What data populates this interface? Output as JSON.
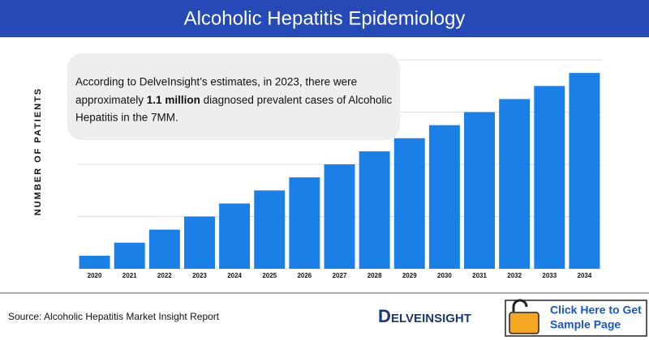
{
  "chart_data": {
    "type": "bar",
    "title": "Alcoholic Hepatitis Epidemiology",
    "ylabel": "NUMBER OF PATIENTS",
    "categories": [
      "2020",
      "2021",
      "2022",
      "2023",
      "2024",
      "2025",
      "2026",
      "2027",
      "2028",
      "2029",
      "2030",
      "2031",
      "2032",
      "2033",
      "2034"
    ],
    "values": [
      0.25,
      0.5,
      0.75,
      1.0,
      1.25,
      1.5,
      1.75,
      2.0,
      2.25,
      2.5,
      2.75,
      3.0,
      3.25,
      3.5,
      3.75
    ],
    "color": "#1a7fe6",
    "ylim": [
      0,
      4
    ],
    "yticks": [
      0,
      1,
      2,
      3,
      4
    ],
    "grid": true,
    "annotation": [
      "According to DelveInsight’s estimates, in 2023, there were",
      [
        "approximately ",
        "1.1 million",
        " diagnosed prevalent cases of Alcoholic"
      ],
      "Hepatitis in the 7MM."
    ]
  },
  "footer": {
    "source": "Source: Alcoholic Hepatitis Market Insight Report",
    "logo": "ELVEINSIGHT",
    "logo_initial": "D",
    "button": [
      "Click Here to Get",
      "Sample Page"
    ]
  }
}
